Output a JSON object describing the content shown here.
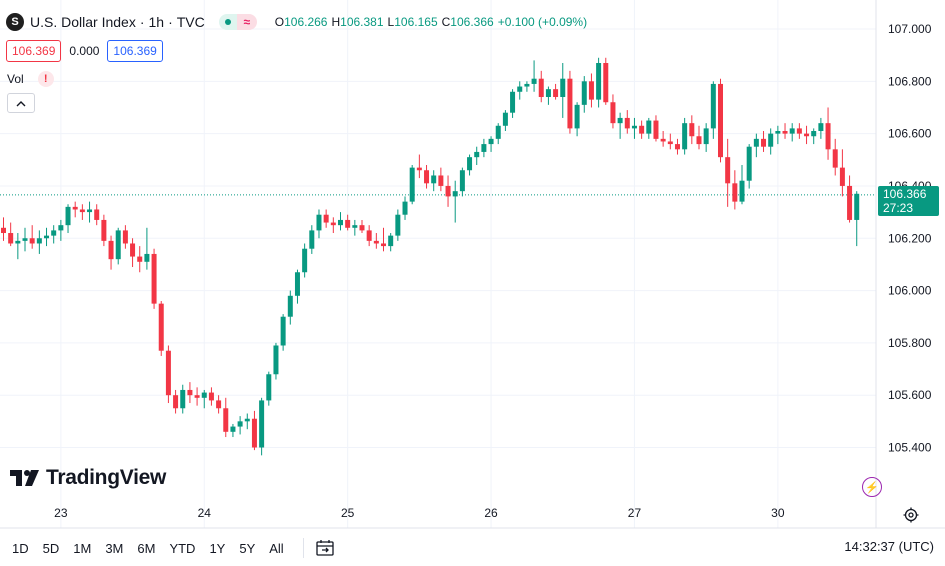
{
  "legend": {
    "symbol_badge": "S",
    "title": "U.S. Dollar Index",
    "interval": "1h",
    "exchange": "TVC",
    "separator": "·",
    "status_glyph": "≈",
    "ohlc": [
      {
        "k": "O",
        "v": "106.266"
      },
      {
        "k": "H",
        "v": "106.381"
      },
      {
        "k": "L",
        "v": "106.165"
      },
      {
        "k": "C",
        "v": "106.366"
      },
      {
        "k": "",
        "v": "+0.100 (+0.09%)"
      }
    ]
  },
  "quote": {
    "sell": "106.369",
    "spread": "0.000",
    "buy": "106.369"
  },
  "indicator": {
    "label": "Vol",
    "warning": "!"
  },
  "watermark": "TradingView",
  "last_price": {
    "value": "106.366",
    "countdown": "27:23"
  },
  "toolbar": {
    "ranges": [
      "1D",
      "5D",
      "1M",
      "3M",
      "6M",
      "YTD",
      "1Y",
      "5Y",
      "All"
    ],
    "clock": "14:32:37 (UTC)"
  },
  "colors": {
    "up": "#089981",
    "down": "#f23645",
    "grid": "#f0f3fa",
    "text": "#131722"
  },
  "chart_data": {
    "type": "candlestick",
    "title": "U.S. Dollar Index · 1h · TVC",
    "y_ticks": [
      "107.000",
      "106.800",
      "106.600",
      "106.400",
      "106.200",
      "106.000",
      "105.800",
      "105.600",
      "105.400"
    ],
    "ylim": [
      105.3,
      107.06
    ],
    "x_ticks": [
      {
        "label": "23",
        "bar": 8
      },
      {
        "label": "24",
        "bar": 28
      },
      {
        "label": "25",
        "bar": 48
      },
      {
        "label": "26",
        "bar": 68
      },
      {
        "label": "27",
        "bar": 88
      },
      {
        "label": "30",
        "bar": 108
      }
    ],
    "last_close": 106.366,
    "grid": true,
    "candles": [
      [
        106.24,
        106.28,
        106.19,
        106.22
      ],
      [
        106.22,
        106.26,
        106.17,
        106.18
      ],
      [
        106.18,
        106.22,
        106.12,
        106.19
      ],
      [
        106.19,
        106.24,
        106.15,
        106.2
      ],
      [
        106.2,
        106.25,
        106.16,
        106.18
      ],
      [
        106.18,
        106.23,
        106.14,
        106.2
      ],
      [
        106.2,
        106.24,
        106.17,
        106.21
      ],
      [
        106.21,
        106.25,
        106.18,
        106.23
      ],
      [
        106.23,
        106.27,
        106.19,
        106.25
      ],
      [
        106.25,
        106.33,
        106.22,
        106.32
      ],
      [
        106.32,
        106.34,
        106.28,
        106.31
      ],
      [
        106.31,
        106.33,
        106.27,
        106.3
      ],
      [
        106.3,
        106.34,
        106.26,
        106.31
      ],
      [
        106.31,
        106.33,
        106.25,
        106.27
      ],
      [
        106.27,
        106.29,
        106.17,
        106.19
      ],
      [
        106.19,
        106.21,
        106.08,
        106.12
      ],
      [
        106.12,
        106.24,
        106.1,
        106.23
      ],
      [
        106.23,
        106.25,
        106.16,
        106.18
      ],
      [
        106.18,
        106.2,
        106.09,
        106.13
      ],
      [
        106.13,
        106.17,
        106.07,
        106.11
      ],
      [
        106.11,
        106.24,
        106.08,
        106.14
      ],
      [
        106.14,
        106.16,
        105.93,
        105.95
      ],
      [
        105.95,
        105.96,
        105.75,
        105.77
      ],
      [
        105.77,
        105.79,
        105.57,
        105.6
      ],
      [
        105.6,
        105.62,
        105.53,
        105.55
      ],
      [
        105.55,
        105.64,
        105.53,
        105.62
      ],
      [
        105.62,
        105.65,
        105.57,
        105.6
      ],
      [
        105.6,
        105.63,
        105.56,
        105.59
      ],
      [
        105.59,
        105.62,
        105.55,
        105.61
      ],
      [
        105.61,
        105.63,
        105.56,
        105.58
      ],
      [
        105.58,
        105.6,
        105.53,
        105.55
      ],
      [
        105.55,
        105.59,
        105.44,
        105.46
      ],
      [
        105.46,
        105.49,
        105.44,
        105.48
      ],
      [
        105.48,
        105.52,
        105.45,
        105.5
      ],
      [
        105.5,
        105.53,
        105.47,
        105.51
      ],
      [
        105.51,
        105.54,
        105.39,
        105.4
      ],
      [
        105.4,
        105.59,
        105.37,
        105.58
      ],
      [
        105.58,
        105.69,
        105.56,
        105.68
      ],
      [
        105.68,
        105.8,
        105.66,
        105.79
      ],
      [
        105.79,
        105.91,
        105.77,
        105.9
      ],
      [
        105.9,
        106.0,
        105.87,
        105.98
      ],
      [
        105.98,
        106.08,
        105.95,
        106.07
      ],
      [
        106.07,
        106.18,
        106.05,
        106.16
      ],
      [
        106.16,
        106.25,
        106.14,
        106.23
      ],
      [
        106.23,
        106.31,
        106.2,
        106.29
      ],
      [
        106.29,
        106.31,
        106.24,
        106.26
      ],
      [
        106.26,
        106.28,
        106.22,
        106.25
      ],
      [
        106.25,
        106.3,
        106.23,
        106.27
      ],
      [
        106.27,
        106.29,
        106.23,
        106.24
      ],
      [
        106.24,
        106.27,
        106.21,
        106.25
      ],
      [
        106.25,
        106.27,
        106.22,
        106.23
      ],
      [
        106.23,
        106.25,
        106.17,
        106.19
      ],
      [
        106.19,
        106.22,
        106.16,
        106.18
      ],
      [
        106.18,
        106.24,
        106.15,
        106.17
      ],
      [
        106.17,
        106.22,
        106.15,
        106.21
      ],
      [
        106.21,
        106.31,
        106.19,
        106.29
      ],
      [
        106.29,
        106.36,
        106.27,
        106.34
      ],
      [
        106.34,
        106.48,
        106.33,
        106.47
      ],
      [
        106.47,
        106.52,
        106.43,
        106.46
      ],
      [
        106.46,
        106.48,
        106.39,
        106.41
      ],
      [
        106.41,
        106.46,
        106.38,
        106.44
      ],
      [
        106.44,
        106.47,
        106.38,
        106.4
      ],
      [
        106.4,
        106.44,
        106.32,
        106.36
      ],
      [
        106.36,
        106.42,
        106.26,
        106.38
      ],
      [
        106.38,
        106.47,
        106.36,
        106.46
      ],
      [
        106.46,
        106.52,
        106.44,
        106.51
      ],
      [
        106.51,
        106.55,
        106.48,
        106.53
      ],
      [
        106.53,
        106.58,
        106.51,
        106.56
      ],
      [
        106.56,
        106.59,
        106.53,
        106.58
      ],
      [
        106.58,
        106.64,
        106.56,
        106.63
      ],
      [
        106.63,
        106.69,
        106.61,
        106.68
      ],
      [
        106.68,
        106.77,
        106.66,
        106.76
      ],
      [
        106.76,
        106.8,
        106.73,
        106.78
      ],
      [
        106.78,
        106.8,
        106.76,
        106.79
      ],
      [
        106.79,
        106.88,
        106.76,
        106.81
      ],
      [
        106.81,
        106.84,
        106.72,
        106.74
      ],
      [
        106.74,
        106.78,
        106.71,
        106.77
      ],
      [
        106.77,
        106.79,
        106.73,
        106.74
      ],
      [
        106.74,
        106.87,
        106.66,
        106.81
      ],
      [
        106.81,
        106.84,
        106.6,
        106.62
      ],
      [
        106.62,
        106.72,
        106.59,
        106.71
      ],
      [
        106.71,
        106.82,
        106.68,
        106.8
      ],
      [
        106.8,
        106.83,
        106.7,
        106.73
      ],
      [
        106.73,
        106.89,
        106.7,
        106.87
      ],
      [
        106.87,
        106.89,
        106.71,
        106.72
      ],
      [
        106.72,
        106.75,
        106.62,
        106.64
      ],
      [
        106.64,
        106.68,
        106.58,
        106.66
      ],
      [
        106.66,
        106.69,
        106.6,
        106.62
      ],
      [
        106.62,
        106.66,
        106.58,
        106.63
      ],
      [
        106.63,
        106.65,
        106.58,
        106.6
      ],
      [
        106.6,
        106.66,
        106.58,
        106.65
      ],
      [
        106.65,
        106.67,
        106.57,
        106.58
      ],
      [
        106.58,
        106.61,
        106.55,
        106.57
      ],
      [
        106.57,
        106.6,
        106.54,
        106.56
      ],
      [
        106.56,
        106.58,
        106.52,
        106.54
      ],
      [
        106.54,
        106.66,
        106.52,
        106.64
      ],
      [
        106.64,
        106.67,
        106.56,
        106.59
      ],
      [
        106.59,
        106.63,
        106.54,
        106.56
      ],
      [
        106.56,
        106.64,
        106.53,
        106.62
      ],
      [
        106.62,
        106.8,
        106.58,
        106.79
      ],
      [
        106.79,
        106.81,
        106.49,
        106.51
      ],
      [
        106.51,
        106.58,
        106.32,
        106.41
      ],
      [
        106.41,
        106.46,
        106.31,
        106.34
      ],
      [
        106.34,
        106.48,
        106.33,
        106.42
      ],
      [
        106.42,
        106.56,
        106.39,
        106.55
      ],
      [
        106.55,
        106.6,
        106.51,
        106.58
      ],
      [
        106.58,
        106.61,
        106.53,
        106.55
      ],
      [
        106.55,
        106.62,
        106.52,
        106.6
      ],
      [
        106.6,
        106.63,
        106.56,
        106.61
      ],
      [
        106.61,
        106.64,
        106.58,
        106.6
      ],
      [
        106.6,
        106.64,
        106.57,
        106.62
      ],
      [
        106.62,
        106.64,
        106.58,
        106.6
      ],
      [
        106.6,
        106.63,
        106.56,
        106.59
      ],
      [
        106.59,
        106.62,
        106.56,
        106.61
      ],
      [
        106.61,
        106.66,
        106.58,
        106.64
      ],
      [
        106.64,
        106.7,
        106.5,
        106.54
      ],
      [
        106.54,
        106.58,
        106.44,
        106.47
      ],
      [
        106.47,
        106.54,
        106.36,
        106.4
      ],
      [
        106.4,
        106.44,
        106.26,
        106.27
      ],
      [
        106.27,
        106.38,
        106.17,
        106.37
      ]
    ]
  }
}
